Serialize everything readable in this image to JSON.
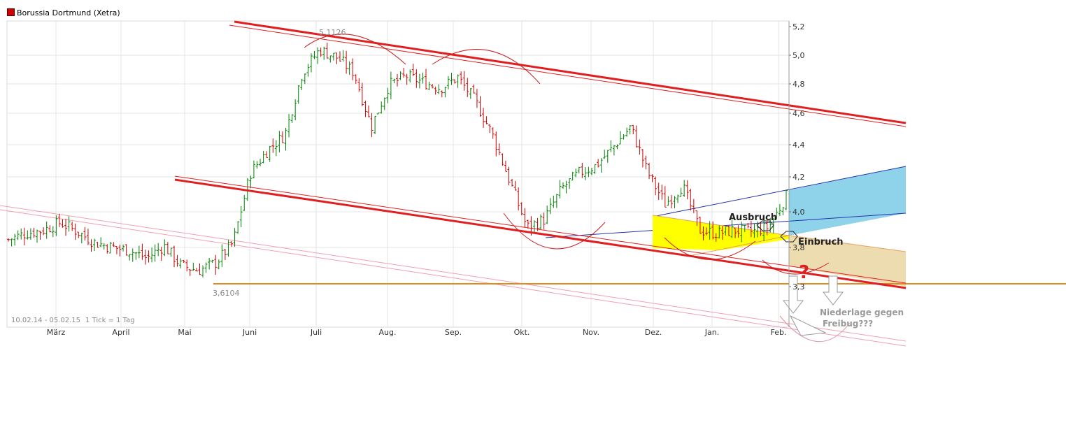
{
  "chart_data": {
    "type": "ohlc",
    "title": "Borussia Dortmund (Xetra)",
    "legend_color": "#cc0000",
    "date_range_label": "10.02.14 - 05.02.15",
    "tick_info": "1 Tick = 1 Tag",
    "grid": true,
    "y_ticks": [
      "5,2",
      "5,0",
      "4,8",
      "4,6",
      "4,4",
      "4,2",
      "4,0",
      "3,8",
      "3,3"
    ],
    "x_ticks": [
      "März",
      "April",
      "Mai",
      "Juni",
      "Juli",
      "Aug.",
      "Sep.",
      "Okt.",
      "Nov.",
      "Dez.",
      "Jan.",
      "Feb."
    ],
    "up_color": "#008000",
    "down_color": "#cc0000",
    "annotations": {
      "high_label": "5,1126",
      "low_label": "3,6104",
      "breakout_label": "Ausbruch",
      "breakdown_label": "Einbruch",
      "question_mark": "?",
      "note": "Niederlage gegen Freibug???"
    },
    "price_closes_weekly": [
      3.82,
      3.86,
      3.88,
      3.93,
      3.87,
      3.8,
      3.77,
      3.75,
      3.7,
      3.78,
      3.65,
      3.62,
      3.67,
      3.8,
      4.25,
      4.4,
      4.5,
      4.9,
      5.05,
      5.0,
      4.9,
      4.55,
      4.82,
      4.88,
      4.84,
      4.8,
      4.87,
      4.72,
      4.5,
      4.2,
      3.9,
      3.95,
      4.15,
      4.25,
      4.3,
      4.42,
      4.55,
      4.25,
      4.05,
      4.17,
      3.88,
      3.86,
      3.88,
      3.87,
      3.9,
      4.1
    ]
  }
}
